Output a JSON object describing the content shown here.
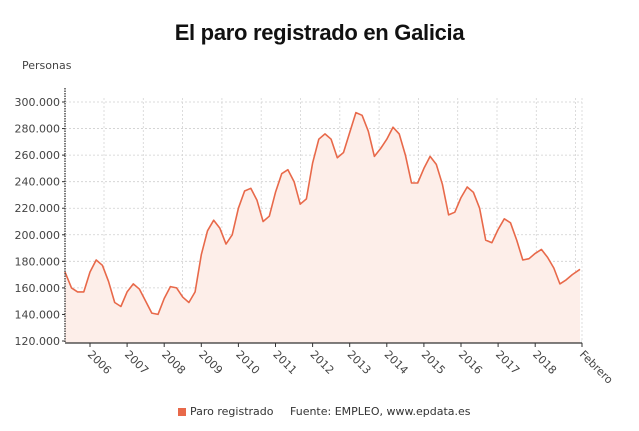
{
  "title": "El paro registrado en Galicia",
  "y_unit": "Personas",
  "legend": {
    "label": "Paro registrado",
    "color": "#e8694a"
  },
  "source": "Fuente: EMPLEO, www.epdata.es",
  "chart_data": {
    "type": "area",
    "title": "El paro registrado en Galicia",
    "xlabel": "",
    "ylabel": "Personas",
    "ylim": [
      118000,
      312000
    ],
    "yticks": [
      "120.000",
      "140.000",
      "160.000",
      "180.000",
      "200.000",
      "220.000",
      "240.000",
      "260.000",
      "280.000",
      "300.000"
    ],
    "xticks": [
      "2006",
      "2007",
      "2008",
      "2009",
      "2010",
      "2011",
      "2012",
      "2013",
      "2014",
      "2015",
      "2016",
      "2017",
      "2018",
      "Febrero"
    ],
    "grid": true,
    "legend_position": "bottom",
    "series": [
      {
        "name": "Paro registrado",
        "color": "#e8694a",
        "points": [
          [
            "2005-05",
            172000
          ],
          [
            "2005-07",
            160000
          ],
          [
            "2005-09",
            157000
          ],
          [
            "2005-11",
            157000
          ],
          [
            "2006-01",
            172000
          ],
          [
            "2006-03",
            181000
          ],
          [
            "2006-05",
            177000
          ],
          [
            "2006-07",
            165000
          ],
          [
            "2006-09",
            149000
          ],
          [
            "2006-11",
            146000
          ],
          [
            "2007-01",
            157000
          ],
          [
            "2007-03",
            163000
          ],
          [
            "2007-05",
            159000
          ],
          [
            "2007-07",
            150000
          ],
          [
            "2007-09",
            141000
          ],
          [
            "2007-11",
            140000
          ],
          [
            "2008-01",
            152000
          ],
          [
            "2008-03",
            161000
          ],
          [
            "2008-05",
            160000
          ],
          [
            "2008-07",
            153000
          ],
          [
            "2008-09",
            149000
          ],
          [
            "2008-11",
            157000
          ],
          [
            "2009-01",
            185000
          ],
          [
            "2009-03",
            203000
          ],
          [
            "2009-05",
            211000
          ],
          [
            "2009-07",
            205000
          ],
          [
            "2009-09",
            193000
          ],
          [
            "2009-11",
            200000
          ],
          [
            "2010-01",
            220000
          ],
          [
            "2010-03",
            233000
          ],
          [
            "2010-05",
            235000
          ],
          [
            "2010-07",
            226000
          ],
          [
            "2010-09",
            210000
          ],
          [
            "2010-11",
            214000
          ],
          [
            "2011-01",
            232000
          ],
          [
            "2011-03",
            246000
          ],
          [
            "2011-05",
            249000
          ],
          [
            "2011-07",
            240000
          ],
          [
            "2011-09",
            223000
          ],
          [
            "2011-11",
            227000
          ],
          [
            "2012-01",
            254000
          ],
          [
            "2012-03",
            272000
          ],
          [
            "2012-05",
            276000
          ],
          [
            "2012-07",
            272000
          ],
          [
            "2012-09",
            258000
          ],
          [
            "2012-11",
            262000
          ],
          [
            "2013-01",
            277000
          ],
          [
            "2013-03",
            292000
          ],
          [
            "2013-05",
            290000
          ],
          [
            "2013-07",
            278000
          ],
          [
            "2013-09",
            259000
          ],
          [
            "2013-11",
            265000
          ],
          [
            "2014-01",
            272000
          ],
          [
            "2014-03",
            281000
          ],
          [
            "2014-05",
            276000
          ],
          [
            "2014-07",
            260000
          ],
          [
            "2014-09",
            239000
          ],
          [
            "2014-11",
            239000
          ],
          [
            "2015-01",
            250000
          ],
          [
            "2015-03",
            259000
          ],
          [
            "2015-05",
            253000
          ],
          [
            "2015-07",
            238000
          ],
          [
            "2015-09",
            215000
          ],
          [
            "2015-11",
            217000
          ],
          [
            "2016-01",
            228000
          ],
          [
            "2016-03",
            236000
          ],
          [
            "2016-05",
            232000
          ],
          [
            "2016-07",
            220000
          ],
          [
            "2016-09",
            196000
          ],
          [
            "2016-11",
            194000
          ],
          [
            "2017-01",
            204000
          ],
          [
            "2017-03",
            212000
          ],
          [
            "2017-05",
            209000
          ],
          [
            "2017-07",
            196000
          ],
          [
            "2017-09",
            181000
          ],
          [
            "2017-11",
            182000
          ],
          [
            "2018-01",
            186000
          ],
          [
            "2018-03",
            189000
          ],
          [
            "2018-05",
            183000
          ],
          [
            "2018-07",
            175000
          ],
          [
            "2018-09",
            163000
          ],
          [
            "2018-11",
            166000
          ],
          [
            "2019-01",
            170000
          ],
          [
            "2019-02",
            174000
          ]
        ]
      }
    ]
  }
}
